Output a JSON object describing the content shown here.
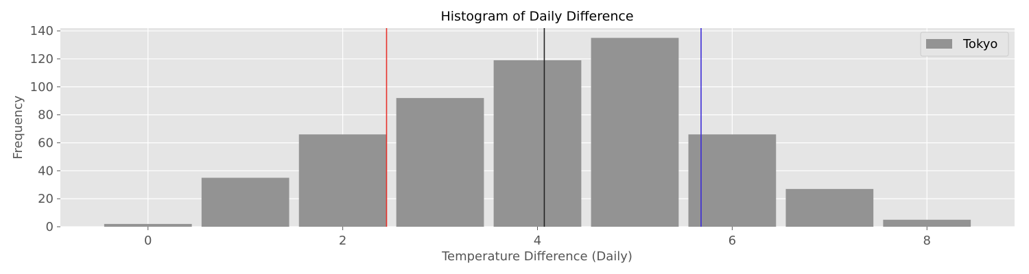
{
  "chart_data": {
    "type": "bar",
    "title": "Histogram of Daily Difference",
    "xlabel": "Temperature Difference (Daily)",
    "ylabel": "Frequency",
    "x": [
      0,
      1,
      2,
      3,
      4,
      5,
      6,
      7,
      8
    ],
    "values": [
      2,
      35,
      66,
      92,
      119,
      135,
      66,
      27,
      5
    ],
    "xlim": [
      -0.9,
      8.9
    ],
    "ylim": [
      0,
      142
    ],
    "xticks": [
      0,
      2,
      4,
      6,
      8
    ],
    "yticks": [
      0,
      20,
      40,
      60,
      80,
      100,
      120,
      140
    ],
    "series_name": "Tokyo",
    "bar_color": "#939393",
    "background_color": "#e5e5e5",
    "grid": true,
    "legend_position": "top-right",
    "vertical_lines": [
      {
        "x": 2.45,
        "color": "#e8302a"
      },
      {
        "x": 4.07,
        "color": "#222222"
      },
      {
        "x": 5.68,
        "color": "#3a2ad6"
      }
    ]
  }
}
